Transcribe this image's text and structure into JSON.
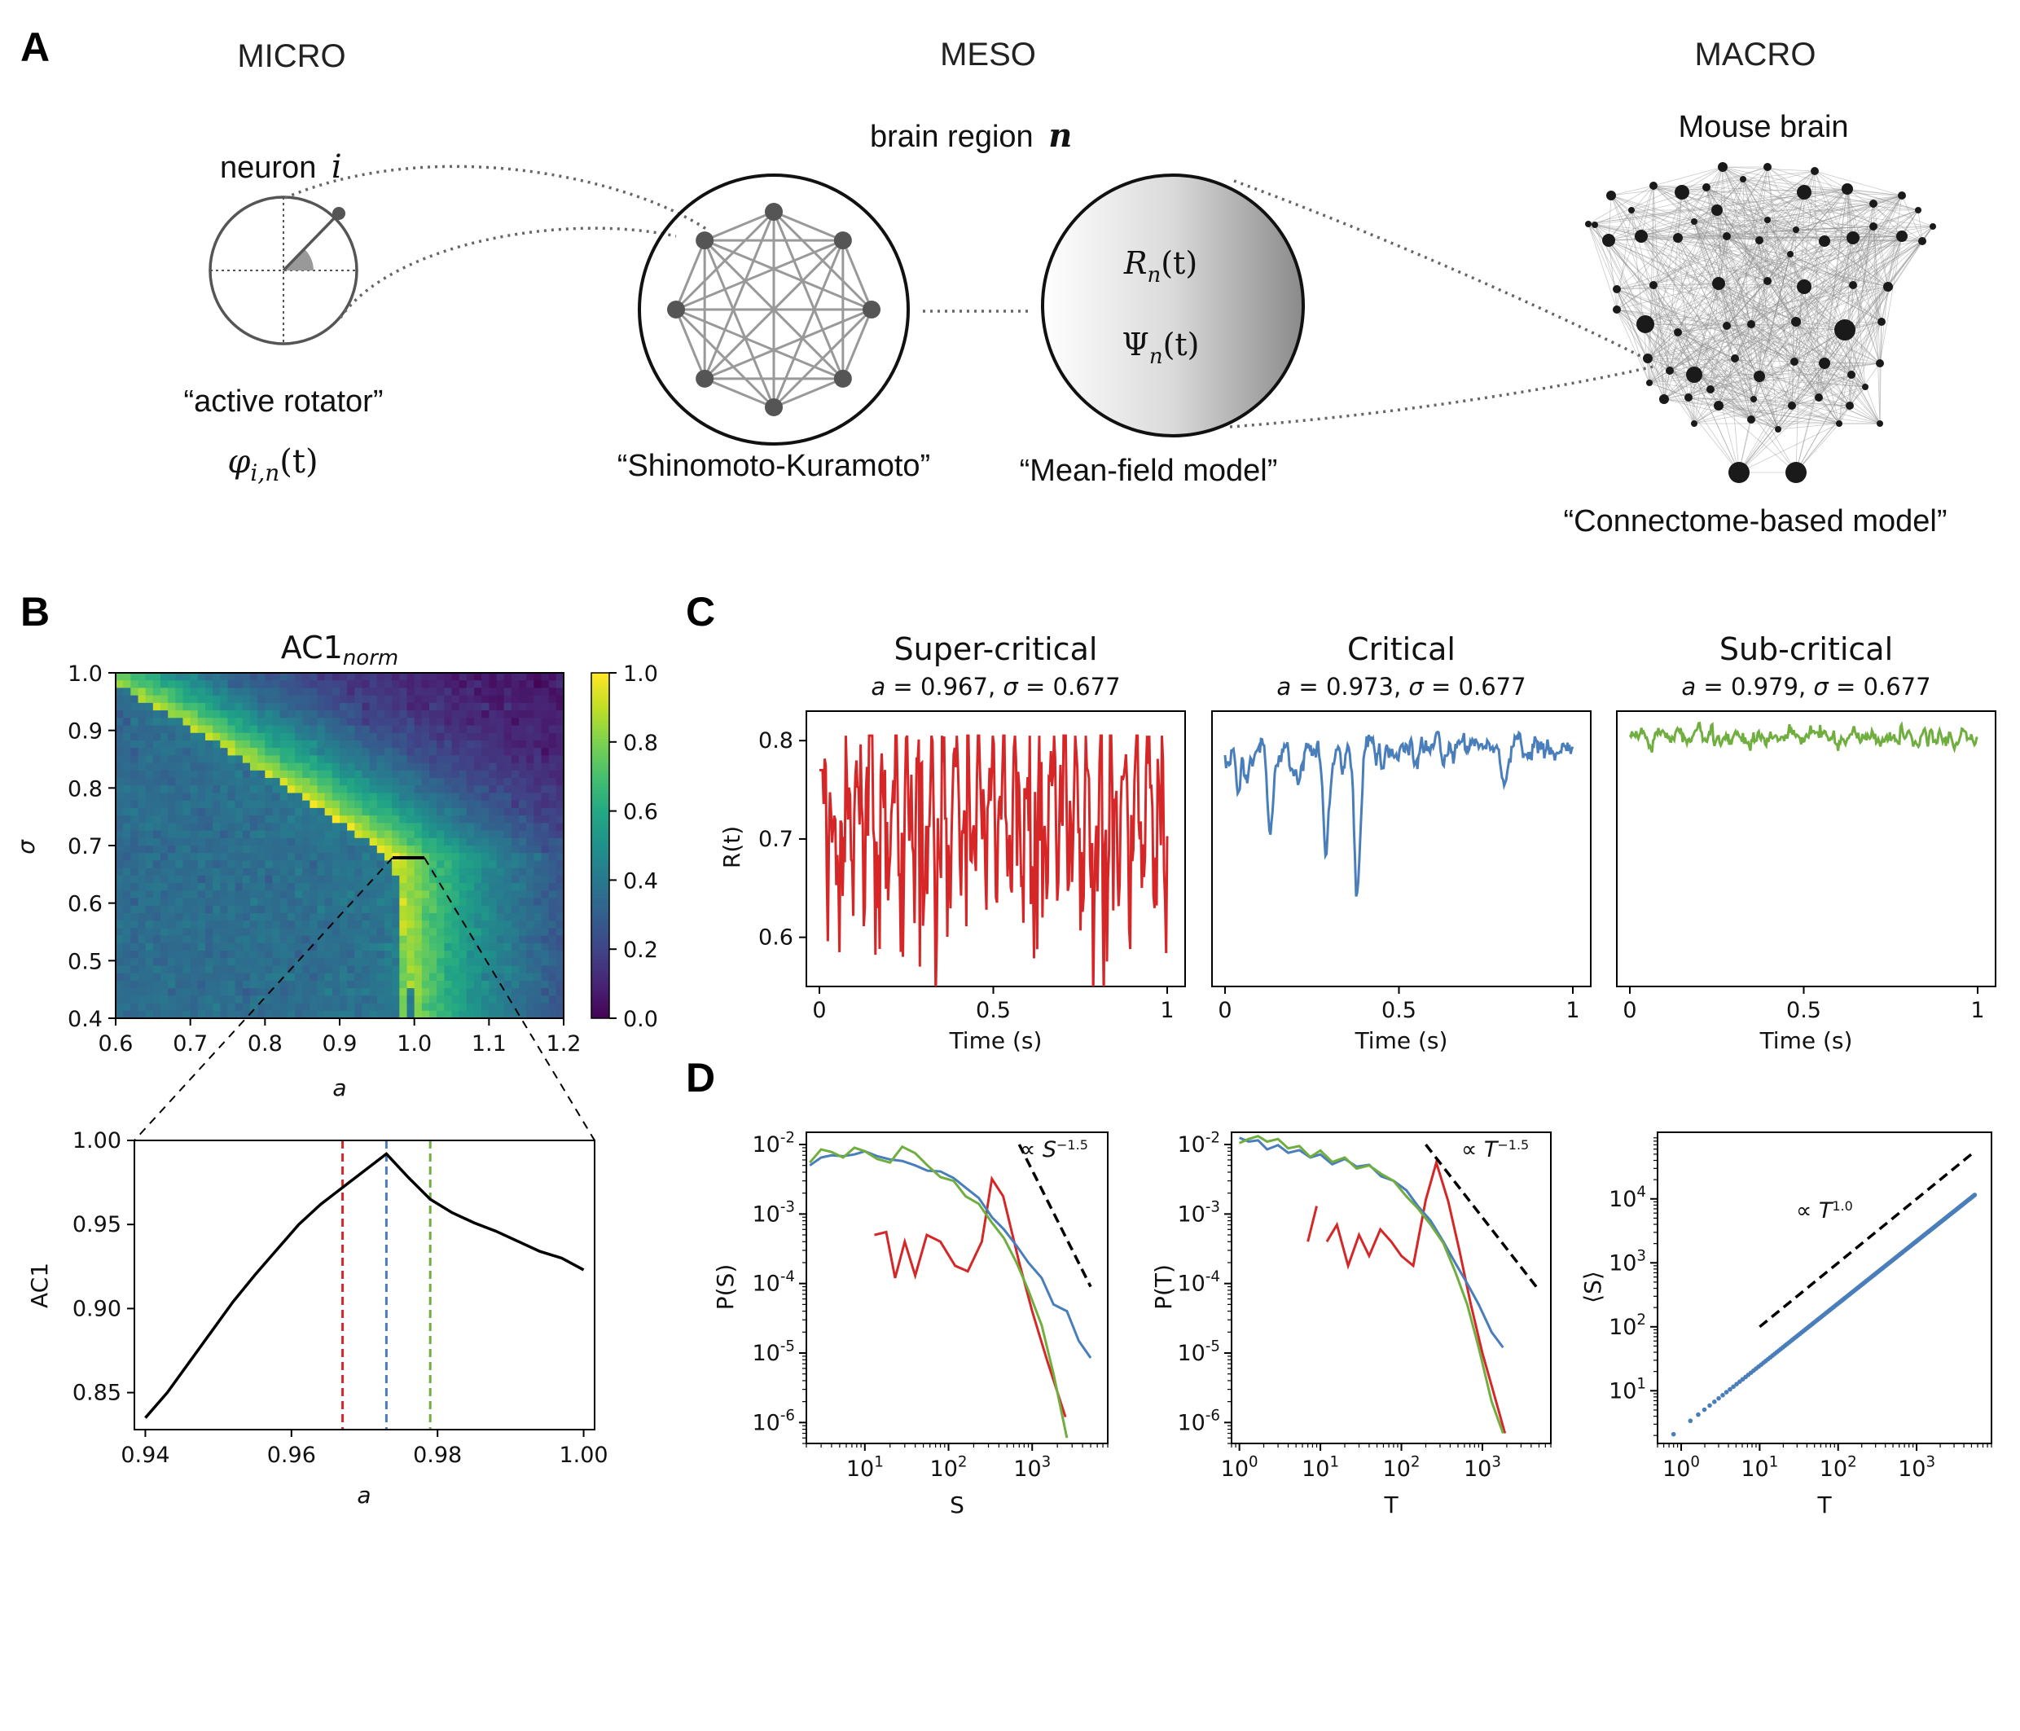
{
  "panel_a": {
    "letter": "A",
    "micro": {
      "header": "MICRO",
      "neuron_label": "neuron",
      "neuron_index": "i",
      "model_name": "“active rotator”",
      "variable": "φ",
      "variable_sub": "i,n",
      "variable_arg": "(t)"
    },
    "meso": {
      "header": "MESO",
      "region_label": "brain region",
      "region_index": "n",
      "model_name": "“Shinomoto-Kuramoto”",
      "mean_field_name": "“Mean-field model”",
      "r_var": "R",
      "psi_var": "Ψ",
      "var_sub": "n",
      "var_arg": "(t)"
    },
    "macro": {
      "header": "MACRO",
      "brain_label": "Mouse brain",
      "model_name": "“Connectome-based model”"
    }
  },
  "panel_b": {
    "letter": "B",
    "heatmap": {
      "title": "AC1",
      "title_sub": "norm",
      "xlabel": "a",
      "ylabel": "σ",
      "xticks": [
        "0.6",
        "0.7",
        "0.8",
        "0.9",
        "1.0",
        "1.1",
        "1.2"
      ],
      "yticks": [
        "1.0",
        "0.9",
        "0.8",
        "0.7",
        "0.6",
        "0.5",
        "0.4"
      ],
      "colorbar_ticks": [
        "1.0",
        "0.8",
        "0.6",
        "0.4",
        "0.2",
        "0.0"
      ],
      "colormap": "viridis"
    },
    "zoom_chart_data": {
      "type": "line",
      "xlabel": "a",
      "ylabel": "AC1",
      "xticks": [
        "0.94",
        "0.96",
        "0.98",
        "1.00"
      ],
      "yticks": [
        "1.00",
        "0.95",
        "0.90",
        "0.85"
      ],
      "xlim": [
        0.9385,
        1.0015
      ],
      "ylim": [
        0.828,
        1.0
      ],
      "x": [
        0.94,
        0.943,
        0.946,
        0.949,
        0.952,
        0.955,
        0.958,
        0.961,
        0.964,
        0.967,
        0.97,
        0.973,
        0.976,
        0.979,
        0.982,
        0.985,
        0.988,
        0.991,
        0.994,
        0.997,
        1.0
      ],
      "y": [
        0.835,
        0.85,
        0.868,
        0.886,
        0.904,
        0.92,
        0.935,
        0.95,
        0.962,
        0.972,
        0.982,
        0.992,
        0.978,
        0.965,
        0.957,
        0.951,
        0.946,
        0.94,
        0.934,
        0.93,
        0.923
      ],
      "vlines": [
        {
          "x": 0.967,
          "color": "#d62728"
        },
        {
          "x": 0.973,
          "color": "#4a7ebb"
        },
        {
          "x": 0.979,
          "color": "#6fae3f"
        }
      ]
    }
  },
  "panel_c": {
    "letter": "C",
    "ylabel": "R(t)",
    "xlabel": "Time (s)",
    "xticks": [
      "0",
      "0.5",
      "1"
    ],
    "yticks": [
      "0.8",
      "0.7",
      "0.6"
    ],
    "ylim": [
      0.55,
      0.83
    ],
    "panels": [
      {
        "title": "Super-critical",
        "subtitle_a": "a",
        "subtitle_a_val": " = 0.967, ",
        "subtitle_s": "σ",
        "subtitle_s_val": " = 0.677",
        "color": "#d62728"
      },
      {
        "title": "Critical",
        "subtitle_a": "a",
        "subtitle_a_val": " = 0.973, ",
        "subtitle_s": "σ",
        "subtitle_s_val": " = 0.677",
        "color": "#4a7ebb"
      },
      {
        "title": "Sub-critical",
        "subtitle_a": "a",
        "subtitle_a_val": " = 0.979, ",
        "subtitle_s": "σ",
        "subtitle_s_val": " = 0.677",
        "color": "#6fae3f"
      }
    ]
  },
  "panel_d": {
    "letter": "D",
    "chart_data": [
      {
        "type": "line",
        "scale": "log-log",
        "xlabel": "S",
        "ylabel": "P(S)",
        "xticks": [
          "10",
          "10",
          "10"
        ],
        "xtick_exp": [
          "1",
          "2",
          "3"
        ],
        "yticks": [
          "10",
          "10",
          "10",
          "10",
          "10"
        ],
        "ytick_exp": [
          "-2",
          "-3",
          "-4",
          "-5",
          "-6"
        ],
        "annotation": "∝ S",
        "annotation_exp": "−1.5",
        "series": [
          {
            "color": "#d62728",
            "x": [
              13,
              18,
              23,
              30,
              40,
              55,
              80,
              120,
              170,
              250,
              330,
              450,
              700,
              1000,
              1500,
              2500
            ],
            "y": [
              0.0005,
              0.00055,
              0.00012,
              0.0004,
              0.00013,
              0.0005,
              0.0004,
              0.00018,
              0.00015,
              0.0004,
              0.0032,
              0.0018,
              0.0002,
              4e-05,
              8e-06,
              1.2e-06
            ]
          },
          {
            "color": "#4a7ebb",
            "x": [
              2.2,
              3,
              4,
              5.5,
              7.5,
              10,
              14,
              20,
              28,
              40,
              56,
              80,
              115,
              160,
              230,
              330,
              460,
              650,
              900,
              1300,
              1800,
              2600,
              3600,
              5000
            ],
            "y": [
              0.005,
              0.0065,
              0.007,
              0.0068,
              0.0072,
              0.008,
              0.0068,
              0.0061,
              0.0058,
              0.005,
              0.0042,
              0.0041,
              0.0033,
              0.0024,
              0.0017,
              0.0009,
              0.0006,
              0.00035,
              0.0002,
              0.00012,
              5e-05,
              4e-05,
              1.5e-05,
              8.5e-06
            ]
          },
          {
            "color": "#6fae3f",
            "x": [
              2.2,
              3,
              4,
              5.5,
              7.5,
              10,
              14,
              20,
              28,
              40,
              56,
              80,
              115,
              160,
              230,
              330,
              460,
              650,
              900,
              1300,
              1800,
              2600
            ],
            "y": [
              0.0055,
              0.0085,
              0.0078,
              0.0065,
              0.009,
              0.008,
              0.0062,
              0.0055,
              0.0093,
              0.0075,
              0.005,
              0.0034,
              0.003,
              0.0018,
              0.0014,
              0.00075,
              0.00045,
              0.0002,
              8e-05,
              2.5e-05,
              5e-06,
              6e-07
            ]
          }
        ],
        "guide": {
          "x": [
            700,
            5000
          ],
          "y": [
            0.01,
            9e-05
          ]
        },
        "xlim": [
          2,
          8000
        ],
        "ylim": [
          5e-07,
          0.015
        ]
      },
      {
        "type": "line",
        "scale": "log-log",
        "xlabel": "T",
        "ylabel": "P(T)",
        "xticks": [
          "10",
          "10",
          "10",
          "10"
        ],
        "xtick_exp": [
          "0",
          "1",
          "2",
          "3"
        ],
        "yticks": [
          "10",
          "10",
          "10",
          "10",
          "10"
        ],
        "ytick_exp": [
          "-2",
          "-3",
          "-4",
          "-5",
          "-6"
        ],
        "annotation": "∝ T",
        "annotation_exp": "−1.5",
        "series": [
          {
            "color": "#d62728",
            "x": [
              7,
              9
            ],
            "y": [
              0.0004,
              0.0013
            ]
          },
          {
            "color": "#d62728",
            "x": [
              12,
              16,
              22,
              30,
              40,
              55,
              75,
              100,
              140,
              200,
              270,
              380,
              520,
              720,
              1000,
              1400,
              1900
            ],
            "y": [
              0.0004,
              0.0007,
              0.00018,
              0.0005,
              0.00025,
              0.0006,
              0.0004,
              0.00025,
              0.00018,
              0.0016,
              0.0055,
              0.0015,
              0.0003,
              5e-05,
              1e-05,
              2.5e-06,
              7e-07
            ]
          },
          {
            "color": "#4a7ebb",
            "x": [
              1,
              1.3,
              1.7,
              2.2,
              3,
              4,
              5.5,
              7.5,
              10,
              14,
              20,
              28,
              40,
              56,
              80,
              115,
              160,
              230,
              330,
              460,
              650,
              900,
              1300,
              1800
            ],
            "y": [
              0.0125,
              0.011,
              0.0115,
              0.0085,
              0.0098,
              0.0076,
              0.0083,
              0.0065,
              0.0072,
              0.0052,
              0.0062,
              0.0048,
              0.0051,
              0.0035,
              0.003,
              0.0022,
              0.0013,
              0.0008,
              0.0004,
              0.0002,
              0.0001,
              5e-05,
              2e-05,
              1.2e-05
            ]
          },
          {
            "color": "#6fae3f",
            "x": [
              1,
              1.3,
              1.7,
              2.2,
              3,
              4,
              5.5,
              7.5,
              10,
              14,
              20,
              28,
              40,
              56,
              80,
              115,
              160,
              230,
              330,
              460,
              650,
              900,
              1300,
              1800
            ],
            "y": [
              0.0105,
              0.012,
              0.0132,
              0.011,
              0.012,
              0.0088,
              0.0095,
              0.0066,
              0.0082,
              0.0056,
              0.0065,
              0.0045,
              0.005,
              0.0038,
              0.003,
              0.0018,
              0.0012,
              0.0007,
              0.00038,
              0.00015,
              5e-05,
              1.2e-05,
              2e-06,
              7e-07
            ]
          }
        ],
        "guide": {
          "x": [
            200,
            5000
          ],
          "y": [
            0.01,
            8e-05
          ]
        },
        "xlim": [
          0.8,
          7000
        ],
        "ylim": [
          5e-07,
          0.015
        ]
      },
      {
        "type": "scatter",
        "scale": "log-log",
        "xlabel": "T",
        "ylabel": "⟨S⟩",
        "xticks": [
          "10",
          "10",
          "10",
          "10"
        ],
        "xtick_exp": [
          "0",
          "1",
          "2",
          "3"
        ],
        "yticks": [
          "10",
          "10",
          "10",
          "10"
        ],
        "ytick_exp": [
          "4",
          "3",
          "2",
          "1"
        ],
        "annotation": "∝ T",
        "annotation_exp": "1.0",
        "series": [
          {
            "color": "#4a7ebb",
            "x_range": [
              0.8,
              5500
            ],
            "y_at_1": 2.6,
            "exponent": 0.975
          }
        ],
        "guide": {
          "x": [
            10,
            5000
          ],
          "y": [
            100,
            50000
          ]
        },
        "xlim": [
          0.5,
          9000
        ],
        "ylim": [
          1.5,
          110000
        ]
      }
    ]
  }
}
